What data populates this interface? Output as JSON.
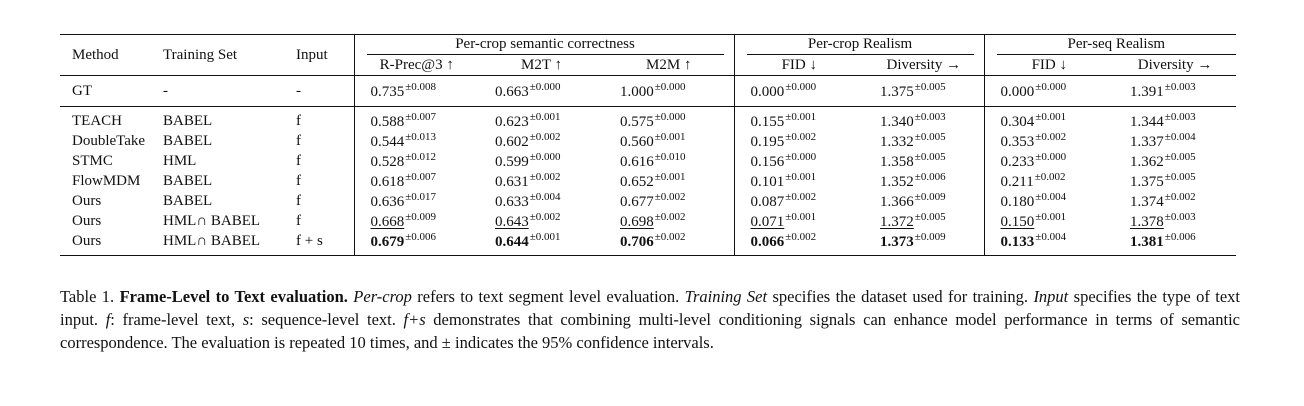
{
  "table": {
    "headers": {
      "method": "Method",
      "training_set": "Training Set",
      "input": "Input",
      "groups": [
        "Per-crop semantic correctness",
        "Per-crop Realism",
        "Per-seq Realism"
      ],
      "metrics": [
        "R-Prec@3 ↑",
        "M2T ↑",
        "M2M ↑",
        "FID ↓",
        "Diversity →",
        "FID ↓",
        "Diversity →"
      ]
    },
    "gt_row": {
      "method": "GT",
      "training_set": "-",
      "input": "-",
      "cells": [
        {
          "v": "0.735",
          "ci": "±0.008"
        },
        {
          "v": "0.663",
          "ci": "±0.000"
        },
        {
          "v": "1.000",
          "ci": "±0.000"
        },
        {
          "v": "0.000",
          "ci": "±0.000"
        },
        {
          "v": "1.375",
          "ci": "±0.005"
        },
        {
          "v": "0.000",
          "ci": "±0.000"
        },
        {
          "v": "1.391",
          "ci": "±0.003"
        }
      ]
    },
    "rows": [
      {
        "method": "TEACH",
        "training_set": "BABEL",
        "input": "f",
        "cells": [
          {
            "v": "0.588",
            "ci": "±0.007"
          },
          {
            "v": "0.623",
            "ci": "±0.001"
          },
          {
            "v": "0.575",
            "ci": "±0.000"
          },
          {
            "v": "0.155",
            "ci": "±0.001"
          },
          {
            "v": "1.340",
            "ci": "±0.003"
          },
          {
            "v": "0.304",
            "ci": "±0.001"
          },
          {
            "v": "1.344",
            "ci": "±0.003"
          }
        ]
      },
      {
        "method": "DoubleTake",
        "training_set": "BABEL",
        "input": "f",
        "cells": [
          {
            "v": "0.544",
            "ci": "±0.013"
          },
          {
            "v": "0.602",
            "ci": "±0.002"
          },
          {
            "v": "0.560",
            "ci": "±0.001"
          },
          {
            "v": "0.195",
            "ci": "±0.002"
          },
          {
            "v": "1.332",
            "ci": "±0.005"
          },
          {
            "v": "0.353",
            "ci": "±0.002"
          },
          {
            "v": "1.337",
            "ci": "±0.004"
          }
        ]
      },
      {
        "method": "STMC",
        "training_set": "HML",
        "input": "f",
        "cells": [
          {
            "v": "0.528",
            "ci": "±0.012"
          },
          {
            "v": "0.599",
            "ci": "±0.000"
          },
          {
            "v": "0.616",
            "ci": "±0.010"
          },
          {
            "v": "0.156",
            "ci": "±0.000"
          },
          {
            "v": "1.358",
            "ci": "±0.005"
          },
          {
            "v": "0.233",
            "ci": "±0.000"
          },
          {
            "v": "1.362",
            "ci": "±0.005"
          }
        ]
      },
      {
        "method": "FlowMDM",
        "training_set": "BABEL",
        "input": "f",
        "cells": [
          {
            "v": "0.618",
            "ci": "±0.007"
          },
          {
            "v": "0.631",
            "ci": "±0.002"
          },
          {
            "v": "0.652",
            "ci": "±0.001"
          },
          {
            "v": "0.101",
            "ci": "±0.001"
          },
          {
            "v": "1.352",
            "ci": "±0.006"
          },
          {
            "v": "0.211",
            "ci": "±0.002"
          },
          {
            "v": "1.375",
            "ci": "±0.005"
          }
        ]
      },
      {
        "method": "Ours",
        "training_set": "BABEL",
        "input": "f",
        "cells": [
          {
            "v": "0.636",
            "ci": "±0.017"
          },
          {
            "v": "0.633",
            "ci": "±0.004"
          },
          {
            "v": "0.677",
            "ci": "±0.002"
          },
          {
            "v": "0.087",
            "ci": "±0.002"
          },
          {
            "v": "1.366",
            "ci": "±0.009"
          },
          {
            "v": "0.180",
            "ci": "±0.004"
          },
          {
            "v": "1.374",
            "ci": "±0.002"
          }
        ]
      },
      {
        "method": "Ours",
        "training_set": "HML∩ BABEL",
        "input": "f",
        "cells": [
          {
            "v": "0.668",
            "ci": "±0.009",
            "style": "u"
          },
          {
            "v": "0.643",
            "ci": "±0.002",
            "style": "u"
          },
          {
            "v": "0.698",
            "ci": "±0.002",
            "style": "u"
          },
          {
            "v": "0.071",
            "ci": "±0.001",
            "style": "u"
          },
          {
            "v": "1.372",
            "ci": "±0.005",
            "style": "u"
          },
          {
            "v": "0.150",
            "ci": "±0.001",
            "style": "u"
          },
          {
            "v": "1.378",
            "ci": "±0.003",
            "style": "u"
          }
        ]
      },
      {
        "method": "Ours",
        "training_set": "HML∩ BABEL",
        "input": "f + s",
        "cells": [
          {
            "v": "0.679",
            "ci": "±0.006",
            "style": "b"
          },
          {
            "v": "0.644",
            "ci": "±0.001",
            "style": "b"
          },
          {
            "v": "0.706",
            "ci": "±0.002",
            "style": "b"
          },
          {
            "v": "0.066",
            "ci": "±0.002",
            "style": "b"
          },
          {
            "v": "1.373",
            "ci": "±0.009",
            "style": "b"
          },
          {
            "v": "0.133",
            "ci": "±0.004",
            "style": "b"
          },
          {
            "v": "1.381",
            "ci": "±0.006",
            "style": "b"
          }
        ]
      }
    ]
  },
  "caption": {
    "label": "Table 1.",
    "title": "Frame-Level to Text evaluation.",
    "parts": [
      {
        "t": " "
      },
      {
        "t": "Per-crop",
        "i": true
      },
      {
        "t": " refers to text segment level evaluation. "
      },
      {
        "t": "Training Set",
        "i": true
      },
      {
        "t": " specifies the dataset used for training. "
      },
      {
        "t": "Input",
        "i": true
      },
      {
        "t": " specifies the type of text input. "
      },
      {
        "t": "f",
        "i": true
      },
      {
        "t": ": frame-level text, "
      },
      {
        "t": "s",
        "i": true
      },
      {
        "t": ": sequence-level text. "
      },
      {
        "t": "f+s",
        "i": true
      },
      {
        "t": " demonstrates that combining multi-level conditioning signals can enhance model performance in terms of semantic correspondence. The evaluation is repeated 10 times, and ± indicates the 95% confidence intervals."
      }
    ]
  }
}
